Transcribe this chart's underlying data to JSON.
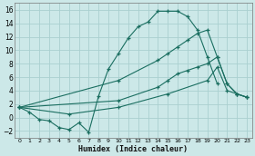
{
  "xlabel": "Humidex (Indice chaleur)",
  "background_color": "#cce8e8",
  "grid_color": "#aad0d0",
  "line_color": "#1a6e60",
  "xlim": [
    -0.5,
    23.5
  ],
  "ylim": [
    -3.0,
    17.0
  ],
  "xticks": [
    0,
    1,
    2,
    3,
    4,
    5,
    6,
    7,
    8,
    9,
    10,
    11,
    12,
    13,
    14,
    15,
    16,
    17,
    18,
    19,
    20,
    21,
    22,
    23
  ],
  "yticks": [
    -2,
    0,
    2,
    4,
    6,
    8,
    10,
    12,
    14,
    16
  ],
  "curve1_x": [
    0,
    1,
    2,
    3,
    4,
    5,
    6,
    7,
    8,
    9,
    10,
    11,
    12,
    13,
    14,
    15,
    16,
    17,
    18,
    19,
    20
  ],
  "curve1_y": [
    1.5,
    0.8,
    -0.3,
    -0.5,
    -1.5,
    -1.8,
    -0.8,
    -2.2,
    3.2,
    7.2,
    9.5,
    11.8,
    13.5,
    14.2,
    15.8,
    15.8,
    15.8,
    15.0,
    13.0,
    9.0,
    5.0
  ],
  "curve2_x": [
    0,
    10,
    14,
    15,
    16,
    17,
    18,
    19,
    20,
    21,
    22,
    23
  ],
  "curve2_y": [
    1.5,
    5.5,
    8.5,
    9.5,
    10.5,
    11.5,
    12.5,
    13.0,
    9.0,
    5.0,
    3.5,
    3.0
  ],
  "curve3_x": [
    0,
    10,
    14,
    15,
    16,
    17,
    18,
    19,
    20,
    21,
    22,
    23
  ],
  "curve3_y": [
    1.5,
    2.5,
    4.5,
    5.5,
    6.5,
    7.0,
    7.5,
    8.0,
    9.0,
    5.0,
    3.5,
    3.0
  ],
  "curve4_x": [
    0,
    5,
    10,
    15,
    19,
    20,
    21,
    22,
    23
  ],
  "curve4_y": [
    1.5,
    0.5,
    1.5,
    3.5,
    5.5,
    7.5,
    4.0,
    3.5,
    3.0
  ]
}
